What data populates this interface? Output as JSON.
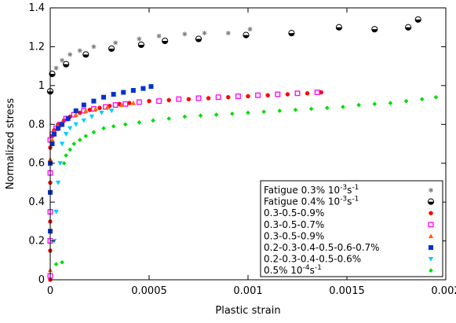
{
  "chart_data": {
    "type": "scatter",
    "xlabel": "Plastic strain",
    "ylabel": "Normalized stress",
    "xlim": [
      0,
      0.002
    ],
    "ylim": [
      0,
      1.4
    ],
    "xticks": [
      {
        "value": 0,
        "label": "0"
      },
      {
        "value": 0.0005,
        "label": "0.0005"
      },
      {
        "value": 0.001,
        "label": "0.001"
      },
      {
        "value": 0.0015,
        "label": "0.0015"
      },
      {
        "value": 0.002,
        "label": "0.002"
      }
    ],
    "yticks": [
      {
        "value": 0,
        "label": "0"
      },
      {
        "value": 0.2,
        "label": "0.2"
      },
      {
        "value": 0.4,
        "label": "0.4"
      },
      {
        "value": 0.6,
        "label": "0.6"
      },
      {
        "value": 0.8,
        "label": "0.8"
      },
      {
        "value": 1.0,
        "label": "1"
      },
      {
        "value": 1.2,
        "label": "1.2"
      },
      {
        "value": 1.4,
        "label": "1.4"
      }
    ],
    "grid": false,
    "legend_position": "bottom-right",
    "series": [
      {
        "name_parts": [
          "Fatigue 0.3% 10",
          "-3",
          "s",
          "-1"
        ],
        "marker": "asterisk",
        "color": "#808080",
        "x": [
          3e-05,
          6e-05,
          0.0001,
          0.00015,
          0.00022,
          0.00033,
          0.00045,
          0.00055,
          0.00068,
          0.00078,
          0.0009,
          0.00101
        ],
        "y": [
          1.09,
          1.13,
          1.16,
          1.18,
          1.2,
          1.22,
          1.24,
          1.255,
          1.265,
          1.27,
          1.27,
          1.29
        ]
      },
      {
        "name_parts": [
          "Fatigue 0.4% 10",
          "-3",
          "s",
          "-1"
        ],
        "marker": "half-circle",
        "color": "#000000",
        "x": [
          0.0,
          1e-05,
          8e-05,
          0.00018,
          0.00031,
          0.00046,
          0.00058,
          0.00075,
          0.00099,
          0.00122,
          0.00146,
          0.00164,
          0.00181,
          0.00186
        ],
        "y": [
          0.97,
          1.06,
          1.11,
          1.16,
          1.19,
          1.21,
          1.23,
          1.24,
          1.26,
          1.27,
          1.3,
          1.29,
          1.3,
          1.34
        ]
      },
      {
        "name_parts": [
          "0.3-0.5-0.9%"
        ],
        "marker": "circle",
        "color": "#ff0000",
        "x": [
          0.0,
          0.0,
          0.0,
          0.0,
          0.0,
          1e-05,
          2e-05,
          4e-05,
          7e-05,
          0.0001,
          0.00015,
          0.0002,
          0.00025,
          0.0003,
          0.00035,
          0.0004,
          0.0005,
          0.0006,
          0.0007,
          0.0008,
          0.0009,
          0.001,
          0.0011,
          0.0012,
          0.0013,
          0.00137
        ],
        "y": [
          0.0,
          0.15,
          0.3,
          0.5,
          0.68,
          0.74,
          0.77,
          0.8,
          0.82,
          0.84,
          0.86,
          0.875,
          0.885,
          0.895,
          0.905,
          0.91,
          0.92,
          0.925,
          0.93,
          0.935,
          0.94,
          0.945,
          0.95,
          0.955,
          0.96,
          0.965
        ]
      },
      {
        "name_parts": [
          "0.3-0.5-0.7%"
        ],
        "marker": "square-open",
        "color": "#ff00ff",
        "x": [
          0.0,
          0.0,
          0.0,
          0.0,
          0.0,
          1e-05,
          3e-05,
          5e-05,
          8e-05,
          0.00012,
          0.00017,
          0.00022,
          0.00028,
          0.00033,
          0.00038,
          0.00045,
          0.00055,
          0.00065,
          0.00075,
          0.00085,
          0.00095,
          0.00105,
          0.00115,
          0.00125,
          0.00135
        ],
        "y": [
          0.02,
          0.2,
          0.35,
          0.55,
          0.72,
          0.75,
          0.78,
          0.8,
          0.83,
          0.85,
          0.87,
          0.88,
          0.89,
          0.9,
          0.905,
          0.915,
          0.92,
          0.93,
          0.935,
          0.94,
          0.945,
          0.95,
          0.955,
          0.96,
          0.965
        ]
      },
      {
        "name_parts": [
          "0.3-0.5-0.9%"
        ],
        "marker": "triangle",
        "color": "#ff6600",
        "x": [
          0.0,
          0.0,
          0.0,
          0.0,
          1e-05,
          2e-05,
          4e-05,
          6e-05,
          9e-05,
          0.00013,
          0.00018,
          0.00023,
          0.00029,
          0.00036,
          0.00042
        ],
        "y": [
          0.05,
          0.25,
          0.45,
          0.62,
          0.72,
          0.76,
          0.79,
          0.81,
          0.83,
          0.85,
          0.87,
          0.88,
          0.89,
          0.9,
          0.91
        ]
      },
      {
        "name_parts": [
          "0.2-0.3-0.4-0.5-0.6-0.7%"
        ],
        "marker": "square",
        "color": "#0033cc",
        "x": [
          0.0,
          0.0,
          0.0,
          1e-05,
          2e-05,
          4e-05,
          6e-05,
          9e-05,
          0.00013,
          0.00017,
          0.00022,
          0.00027,
          0.00032,
          0.00037,
          0.00042,
          0.00047,
          0.00051
        ],
        "y": [
          0.25,
          0.45,
          0.6,
          0.7,
          0.75,
          0.78,
          0.8,
          0.83,
          0.87,
          0.9,
          0.92,
          0.94,
          0.955,
          0.965,
          0.975,
          0.985,
          0.995
        ]
      },
      {
        "name_parts": [
          "0.2-0.3-0.4-0.5-0.6%"
        ],
        "marker": "triangle-down",
        "color": "#00ccff",
        "x": [
          2e-05,
          3e-05,
          4e-05,
          5e-05,
          6e-05,
          8e-05,
          0.0001,
          0.00013,
          0.00017,
          0.00021,
          0.00026,
          0.00031
        ],
        "y": [
          0.2,
          0.35,
          0.5,
          0.6,
          0.7,
          0.75,
          0.78,
          0.8,
          0.82,
          0.84,
          0.86,
          0.87
        ]
      },
      {
        "name_parts": [
          "0.5% 10",
          "-4",
          "s",
          "-1"
        ],
        "marker": "diamond",
        "color": "#00dd00",
        "x": [
          3e-05,
          6e-05,
          7e-05,
          8e-05,
          0.0001,
          0.00012,
          0.00015,
          0.00018,
          0.00022,
          0.00027,
          0.00032,
          0.00038,
          0.00045,
          0.00052,
          0.0006,
          0.00068,
          0.00076,
          0.00084,
          0.00092,
          0.001,
          0.00108,
          0.00116,
          0.00124,
          0.00132,
          0.0014,
          0.00148,
          0.00156,
          0.00164,
          0.00172,
          0.0018,
          0.00188,
          0.00195
        ],
        "y": [
          0.08,
          0.09,
          0.6,
          0.64,
          0.67,
          0.7,
          0.72,
          0.74,
          0.76,
          0.78,
          0.79,
          0.8,
          0.81,
          0.82,
          0.83,
          0.84,
          0.845,
          0.85,
          0.855,
          0.86,
          0.865,
          0.87,
          0.875,
          0.88,
          0.885,
          0.89,
          0.9,
          0.905,
          0.91,
          0.92,
          0.93,
          0.94
        ]
      }
    ]
  }
}
